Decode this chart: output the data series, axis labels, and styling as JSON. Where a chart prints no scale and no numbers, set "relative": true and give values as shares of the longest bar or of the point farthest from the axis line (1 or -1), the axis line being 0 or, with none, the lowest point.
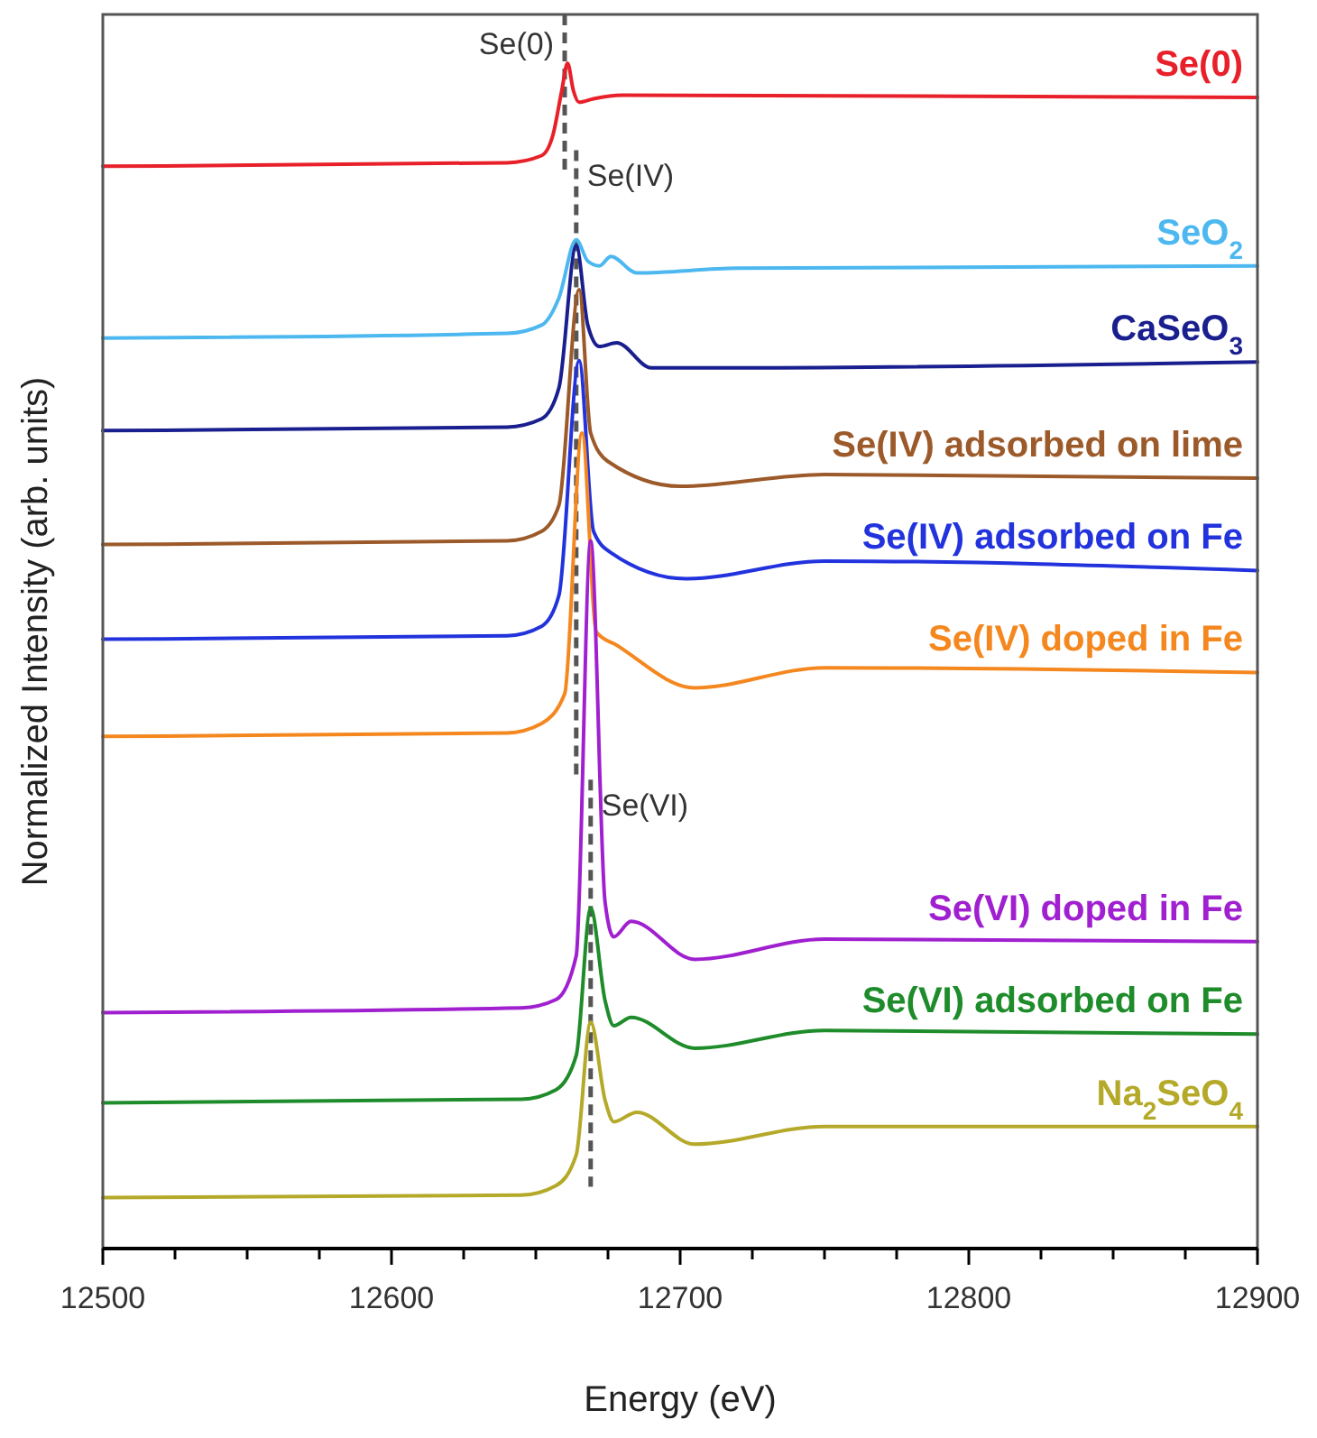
{
  "chart_data": {
    "type": "line",
    "relative": true,
    "xlabel": "Energy (eV)",
    "ylabel": "Normalized Intensity (arb. units)",
    "xlim": [
      12500,
      12900
    ],
    "xticks": [
      12500,
      {
        "value": 12525,
        "label": null
      },
      {
        "value": 12550,
        "label": null
      },
      {
        "value": 12575,
        "label": null
      },
      12600,
      {
        "value": 12625,
        "label": null
      },
      {
        "value": 12650,
        "label": null
      },
      {
        "value": 12675,
        "label": null
      },
      12700,
      {
        "value": 12725,
        "label": null
      },
      {
        "value": 12750,
        "label": null
      },
      {
        "value": 12775,
        "label": null
      },
      12800,
      {
        "value": 12825,
        "label": null
      },
      {
        "value": 12850,
        "label": null
      },
      {
        "value": 12875,
        "label": null
      },
      12900
    ],
    "grid": false,
    "marker": "none",
    "line_style": "solid",
    "ref_lines": [
      {
        "axis": "x",
        "value": 12660,
        "label": "Se(0)",
        "color": "#555555",
        "line_style": "dashed"
      },
      {
        "axis": "x",
        "value": 12664,
        "label": "Se(IV)",
        "color": "#555555",
        "line_style": "dashed"
      },
      {
        "axis": "x",
        "value": 12669,
        "label": "Se(VI)",
        "color": "#555555",
        "line_style": "dashed"
      }
    ],
    "series": [
      {
        "name": "Se(0)",
        "color": "#e8202a",
        "x": [
          12500,
          12640,
          12652,
          12656,
          12659,
          12661,
          12663,
          12665,
          12670,
          12680,
          12900
        ],
        "values": [
          0.913,
          0.916,
          0.922,
          0.94,
          0.977,
          1,
          0.977,
          0.967,
          0.97,
          0.973,
          0.971
        ]
      },
      {
        "name": "SeO$_{2}$",
        "color": "#4db8f0",
        "x": [
          12500,
          12640,
          12652,
          12658,
          12664,
          12668,
          12672,
          12676,
          12685,
          12720,
          12900
        ],
        "values": [
          0.768,
          0.772,
          0.779,
          0.802,
          0.851,
          0.833,
          0.829,
          0.837,
          0.823,
          0.827,
          0.829
        ]
      },
      {
        "name": "CaSeO$_{3}$",
        "color": "#1a1f8f",
        "x": [
          12500,
          12640,
          12652,
          12658,
          12664,
          12668,
          12672,
          12678,
          12690,
          12720,
          12900
        ],
        "values": [
          0.69,
          0.693,
          0.7,
          0.726,
          0.846,
          0.779,
          0.761,
          0.764,
          0.743,
          0.743,
          0.748
        ]
      },
      {
        "name": "Se(IV) adsorbed on lime",
        "color": "#9c5a2a",
        "x": [
          12500,
          12640,
          12652,
          12658,
          12665,
          12669,
          12675,
          12700,
          12750,
          12900
        ],
        "values": [
          0.594,
          0.597,
          0.605,
          0.627,
          0.809,
          0.688,
          0.664,
          0.643,
          0.653,
          0.65
        ]
      },
      {
        "name": "Se(IV) adsorbed on Fe",
        "color": "#2233dd",
        "x": [
          12500,
          12640,
          12652,
          12658,
          12665,
          12670,
          12676,
          12702,
          12750,
          12900
        ],
        "values": [
          0.514,
          0.517,
          0.525,
          0.551,
          0.749,
          0.605,
          0.587,
          0.565,
          0.58,
          0.572
        ]
      },
      {
        "name": "Se(IV) doped in Fe",
        "color": "#f5871f",
        "x": [
          12500,
          12640,
          12652,
          12660,
          12666,
          12671,
          12678,
          12705,
          12750,
          12900
        ],
        "values": [
          0.432,
          0.435,
          0.443,
          0.468,
          0.688,
          0.52,
          0.509,
          0.473,
          0.49,
          0.486
        ]
      },
      {
        "name": "Se(VI) doped in Fe",
        "color": "#a020d0",
        "x": [
          12500,
          12645,
          12657,
          12664,
          12669,
          12674,
          12677,
          12683,
          12705,
          12750,
          12900
        ],
        "values": [
          0.199,
          0.203,
          0.21,
          0.247,
          0.597,
          0.292,
          0.263,
          0.276,
          0.244,
          0.261,
          0.259
        ]
      },
      {
        "name": "Se(VI) adsorbed on Fe",
        "color": "#1e8c2a",
        "x": [
          12500,
          12645,
          12657,
          12664,
          12669,
          12674,
          12677,
          12683,
          12705,
          12750,
          12900
        ],
        "values": [
          0.123,
          0.126,
          0.134,
          0.163,
          0.287,
          0.209,
          0.188,
          0.195,
          0.169,
          0.184,
          0.181
        ]
      },
      {
        "name": "Na$_{2}$SeO$_{4}$",
        "color": "#b5a92a",
        "x": [
          12500,
          12645,
          12657,
          12664,
          12669,
          12674,
          12677,
          12685,
          12705,
          12750,
          12900
        ],
        "values": [
          0.043,
          0.045,
          0.053,
          0.079,
          0.191,
          0.125,
          0.107,
          0.115,
          0.088,
          0.103,
          0.103
        ]
      }
    ]
  }
}
